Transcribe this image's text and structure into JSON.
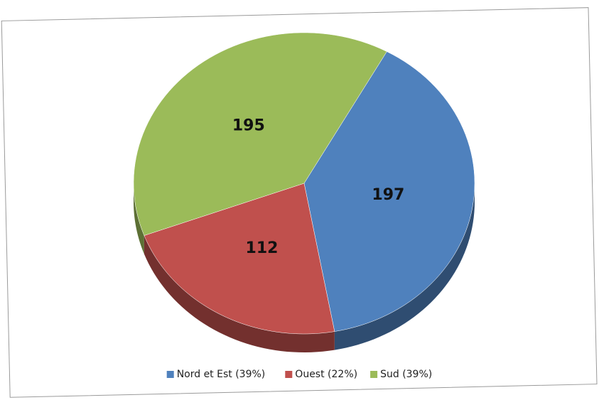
{
  "chart_data": {
    "type": "pie",
    "categories": [
      "Nord et Est (39%)",
      "Ouest (22%)",
      "Sud (39%)"
    ],
    "values": [
      197,
      112,
      195
    ],
    "colors": [
      "#4f81bd",
      "#c0504d",
      "#9bbb59"
    ],
    "legend": "bottom"
  }
}
